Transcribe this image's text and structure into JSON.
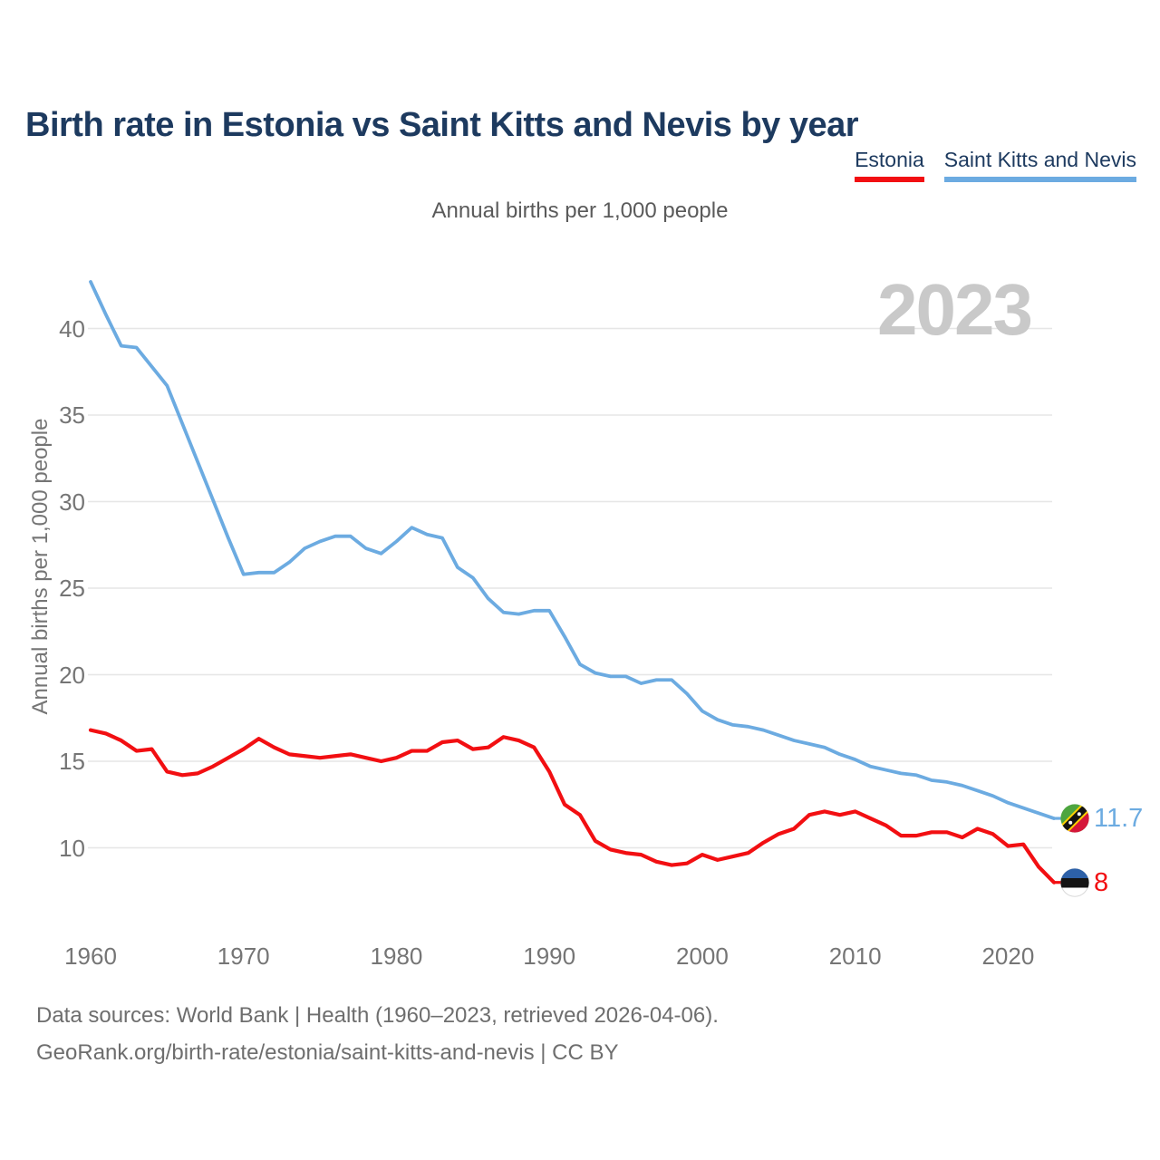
{
  "header": {
    "title": "Birth rate in Estonia vs Saint Kitts and Nevis by year"
  },
  "legend": {
    "estonia": {
      "label": "Estonia",
      "color": "#f20f12"
    },
    "saint_kitts": {
      "label": "Saint Kitts and Nevis",
      "color": "#6cabe1"
    }
  },
  "watermark": "2023",
  "icons": {
    "estonia_flag": "estonia-flag-icon",
    "saint_kitts_flag": "saint-kitts-and-nevis-flag-icon"
  },
  "chart_data": {
    "type": "line",
    "title": "Birth rate in Estonia vs Saint Kitts and Nevis by year",
    "subtitle": "Annual births per 1,000 people",
    "ylabel": "Annual births per 1,000 people",
    "xlabel": "",
    "grid": true,
    "legend_position": "top-right",
    "watermark": "2023",
    "xlim": [
      1960,
      2023
    ],
    "ylim": [
      7.5,
      43.5
    ],
    "xticks": [
      1960,
      1970,
      1980,
      1990,
      2000,
      2010,
      2020
    ],
    "yticks": [
      10,
      15,
      20,
      25,
      30,
      35,
      40
    ],
    "years": [
      1960,
      1961,
      1962,
      1963,
      1964,
      1965,
      1966,
      1967,
      1968,
      1969,
      1970,
      1971,
      1972,
      1973,
      1974,
      1975,
      1976,
      1977,
      1978,
      1979,
      1980,
      1981,
      1982,
      1983,
      1984,
      1985,
      1986,
      1987,
      1988,
      1989,
      1990,
      1991,
      1992,
      1993,
      1994,
      1995,
      1996,
      1997,
      1998,
      1999,
      2000,
      2001,
      2002,
      2003,
      2004,
      2005,
      2006,
      2007,
      2008,
      2009,
      2010,
      2011,
      2012,
      2013,
      2014,
      2015,
      2016,
      2017,
      2018,
      2019,
      2020,
      2021,
      2022,
      2023
    ],
    "series": [
      {
        "name": "Estonia",
        "color": "#f20f12",
        "end_label": "8",
        "end_year_value": 8,
        "values": [
          16.8,
          16.6,
          16.2,
          15.6,
          15.7,
          14.4,
          14.2,
          14.3,
          14.7,
          15.2,
          15.7,
          16.3,
          15.8,
          15.4,
          15.3,
          15.2,
          15.3,
          15.4,
          15.2,
          15.0,
          15.2,
          15.6,
          15.6,
          16.1,
          16.2,
          15.7,
          15.8,
          16.4,
          16.2,
          15.8,
          14.4,
          12.5,
          11.9,
          10.4,
          9.9,
          9.7,
          9.6,
          9.2,
          9.0,
          9.1,
          9.6,
          9.3,
          9.5,
          9.7,
          10.3,
          10.8,
          11.1,
          11.9,
          12.1,
          11.9,
          12.1,
          11.7,
          11.3,
          10.7,
          10.7,
          10.9,
          10.9,
          10.6,
          11.1,
          10.8,
          10.1,
          10.2,
          8.9,
          8.0
        ]
      },
      {
        "name": "Saint Kitts and Nevis",
        "color": "#6cabe1",
        "end_label": "11.7",
        "end_year_value": 11.7,
        "values": [
          42.7,
          40.8,
          39.0,
          38.9,
          37.8,
          36.7,
          34.5,
          32.3,
          30.1,
          27.9,
          25.8,
          25.9,
          25.9,
          26.5,
          27.3,
          27.7,
          28.0,
          28.0,
          27.3,
          27.0,
          27.7,
          28.5,
          28.1,
          27.9,
          26.2,
          25.6,
          24.4,
          23.6,
          23.5,
          23.7,
          23.7,
          22.2,
          20.6,
          20.1,
          19.9,
          19.9,
          19.5,
          19.7,
          19.7,
          18.9,
          17.9,
          17.4,
          17.1,
          17.0,
          16.8,
          16.5,
          16.2,
          16.0,
          15.8,
          15.4,
          15.1,
          14.7,
          14.5,
          14.3,
          14.2,
          13.9,
          13.8,
          13.6,
          13.3,
          13.0,
          12.6,
          12.3,
          12.0,
          11.7
        ]
      }
    ]
  },
  "footer": {
    "line1": "Data sources: World Bank | Health (1960–2023, retrieved 2026-04-06).",
    "line2": "GeoRank.org/birth-rate/estonia/saint-kitts-and-nevis | CC BY"
  }
}
